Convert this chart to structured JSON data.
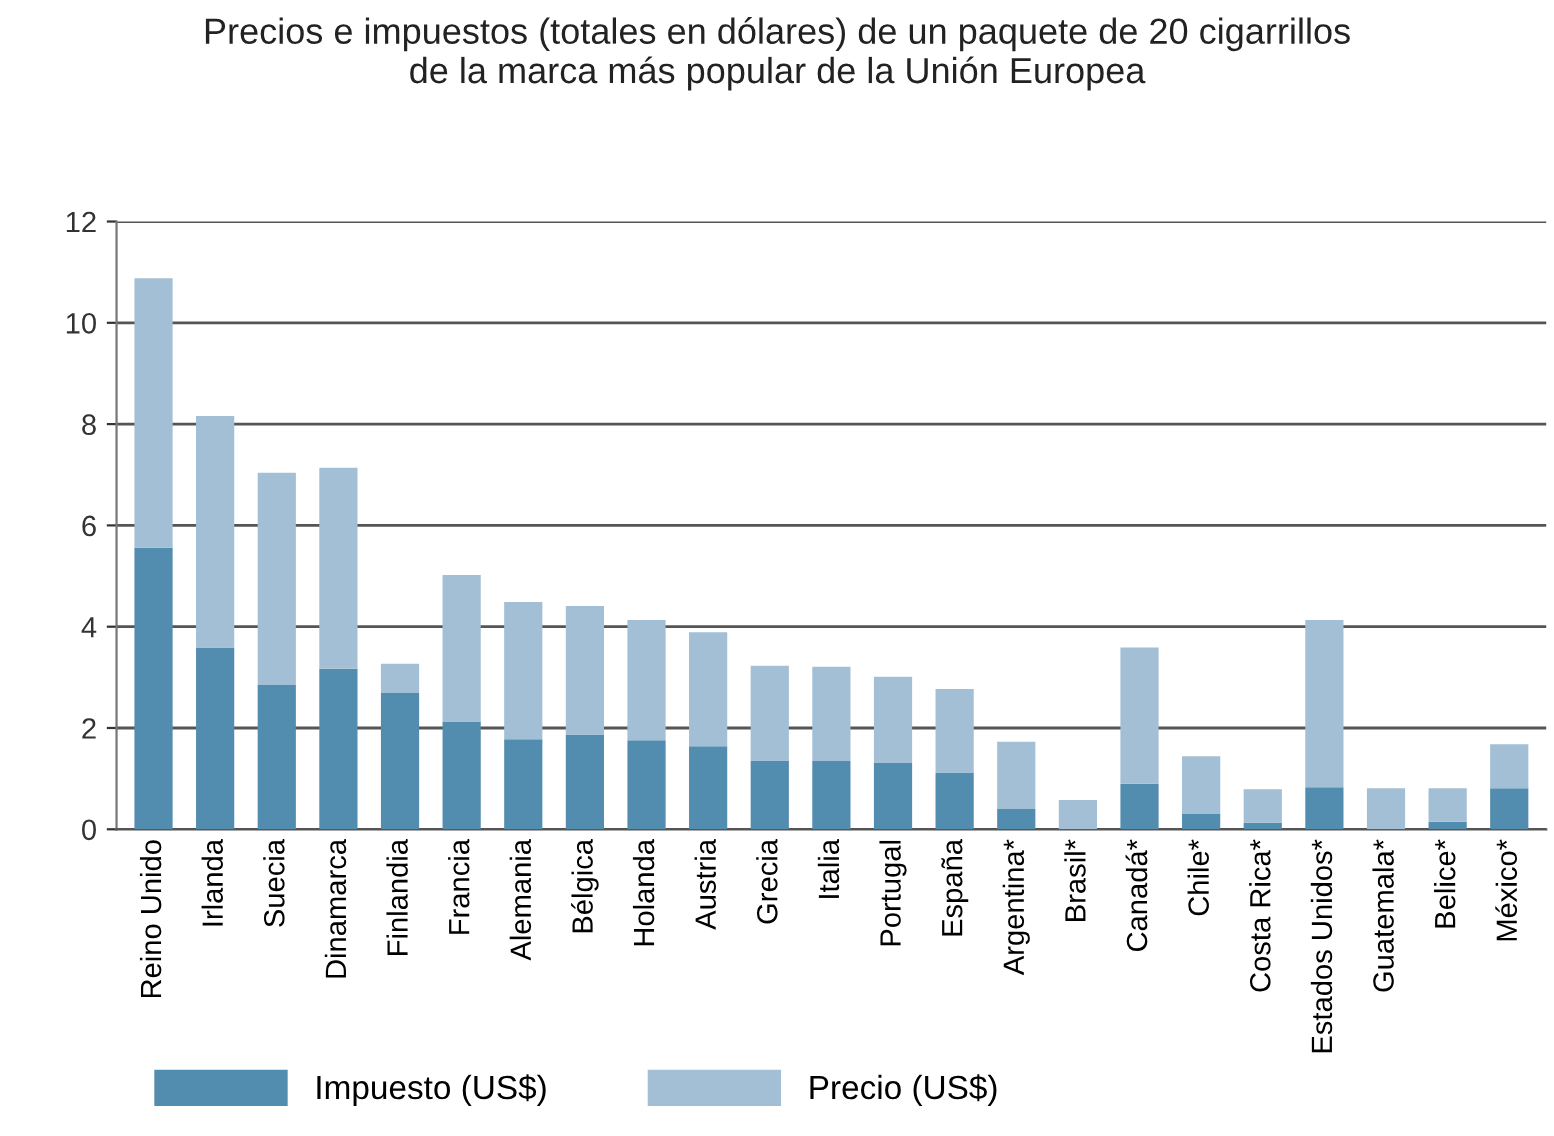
{
  "chart_data": {
    "type": "bar",
    "title": "Precios e impuestos (totales en dólares) de un paquete de 20 cigarrillos\nde la marca más popular de la Unión Europea",
    "categories": [
      "Reino Unido",
      "Irlanda",
      "Suecia",
      "Dinamarca",
      "Finlandia",
      "Francia",
      "Alemania",
      "Bélgica",
      "Holanda",
      "Austria",
      "Grecia",
      "Italia",
      "Portugal",
      "España",
      "Argentina*",
      "Brasil*",
      "Canadá*",
      "Chile*",
      "Costa Rica*",
      "Estados Unidos*",
      "Guatemala*",
      "Belice*",
      "México*"
    ],
    "stacked": true,
    "series": [
      {
        "name": "Impuesto (US$)",
        "color": "#528cae",
        "values": [
          5.56,
          3.59,
          2.85,
          3.17,
          2.69,
          2.13,
          1.78,
          1.87,
          1.76,
          1.64,
          1.36,
          1.35,
          1.31,
          1.12,
          0.4,
          0,
          0.9,
          0.3,
          0.13,
          0.83,
          0,
          0.15,
          0.81
        ]
      },
      {
        "name": "Precio (US$)",
        "color": "#a2bfd5",
        "values": [
          5.32,
          4.57,
          4.19,
          3.97,
          0.58,
          2.89,
          2.71,
          2.54,
          2.37,
          2.25,
          1.87,
          1.86,
          1.7,
          1.65,
          1.33,
          0.58,
          2.69,
          1.14,
          0.66,
          3.3,
          0.81,
          0.66,
          0.87
        ]
      }
    ],
    "ylim": [
      0,
      12
    ],
    "yticks": [
      0,
      2,
      4,
      6,
      8,
      10,
      12
    ],
    "grid": "y",
    "legend": "bottom"
  }
}
